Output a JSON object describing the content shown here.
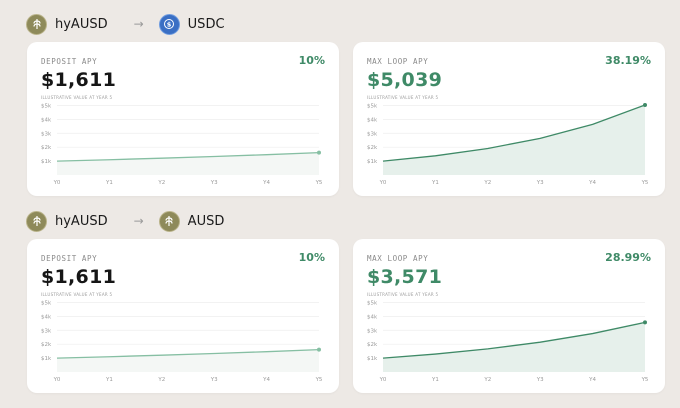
{
  "sections": [
    {
      "pair": {
        "from_token": "hyAUSD",
        "arrow": "→",
        "to_token": "USDC",
        "from_icon": "hyausd-logo-icon",
        "to_icon": "usdc-logo-icon"
      },
      "deposit": {
        "label": "DEPOSIT APY",
        "apy": "10%",
        "value": "$1,611",
        "note": "ILLUSTRATIVE VALUE AT YEAR 5",
        "chart_data": {
          "type": "line",
          "categories": [
            "Y0",
            "Y1",
            "Y2",
            "Y3",
            "Y4",
            "Y5"
          ],
          "values": [
            1000,
            1100,
            1210,
            1331,
            1464,
            1611
          ],
          "y_ticks": [
            "$1k",
            "$2k",
            "$3k",
            "$4k",
            "$5k"
          ],
          "ylim": [
            0,
            5400
          ],
          "color": "#86bfa3",
          "fill": "#f4f7f5",
          "grid": true
        }
      },
      "loop": {
        "label": "MAX LOOP APY",
        "apy": "38.19%",
        "value": "$5,039",
        "note": "ILLUSTRATIVE VALUE AT YEAR 5",
        "chart_data": {
          "type": "area",
          "categories": [
            "Y0",
            "Y1",
            "Y2",
            "Y3",
            "Y4",
            "Y5"
          ],
          "values": [
            1000,
            1382,
            1910,
            2639,
            3646,
            5039
          ],
          "y_ticks": [
            "$1k",
            "$2k",
            "$3k",
            "$4k",
            "$5k"
          ],
          "ylim": [
            0,
            5400
          ],
          "color": "#3f8a67",
          "fill": "#e6f0eb",
          "grid": true
        }
      }
    },
    {
      "pair": {
        "from_token": "hyAUSD",
        "arrow": "→",
        "to_token": "AUSD",
        "from_icon": "hyausd-logo-icon",
        "to_icon": "ausd-logo-icon"
      },
      "deposit": {
        "label": "DEPOSIT APY",
        "apy": "10%",
        "value": "$1,611",
        "note": "ILLUSTRATIVE VALUE AT YEAR 5",
        "chart_data": {
          "type": "line",
          "categories": [
            "Y0",
            "Y1",
            "Y2",
            "Y3",
            "Y4",
            "Y5"
          ],
          "values": [
            1000,
            1100,
            1210,
            1331,
            1464,
            1611
          ],
          "y_ticks": [
            "$1k",
            "$2k",
            "$3k",
            "$4k",
            "$5k"
          ],
          "ylim": [
            0,
            5400
          ],
          "color": "#86bfa3",
          "fill": "#f4f7f5",
          "grid": true
        }
      },
      "loop": {
        "label": "MAX LOOP APY",
        "apy": "28.99%",
        "value": "$3,571",
        "note": "ILLUSTRATIVE VALUE AT YEAR 5",
        "chart_data": {
          "type": "area",
          "categories": [
            "Y0",
            "Y1",
            "Y2",
            "Y3",
            "Y4",
            "Y5"
          ],
          "values": [
            1000,
            1290,
            1664,
            2146,
            2768,
            3571
          ],
          "y_ticks": [
            "$1k",
            "$2k",
            "$3k",
            "$4k",
            "$5k"
          ],
          "ylim": [
            0,
            5400
          ],
          "color": "#3f8a67",
          "fill": "#e6f0eb",
          "grid": true
        }
      }
    }
  ]
}
